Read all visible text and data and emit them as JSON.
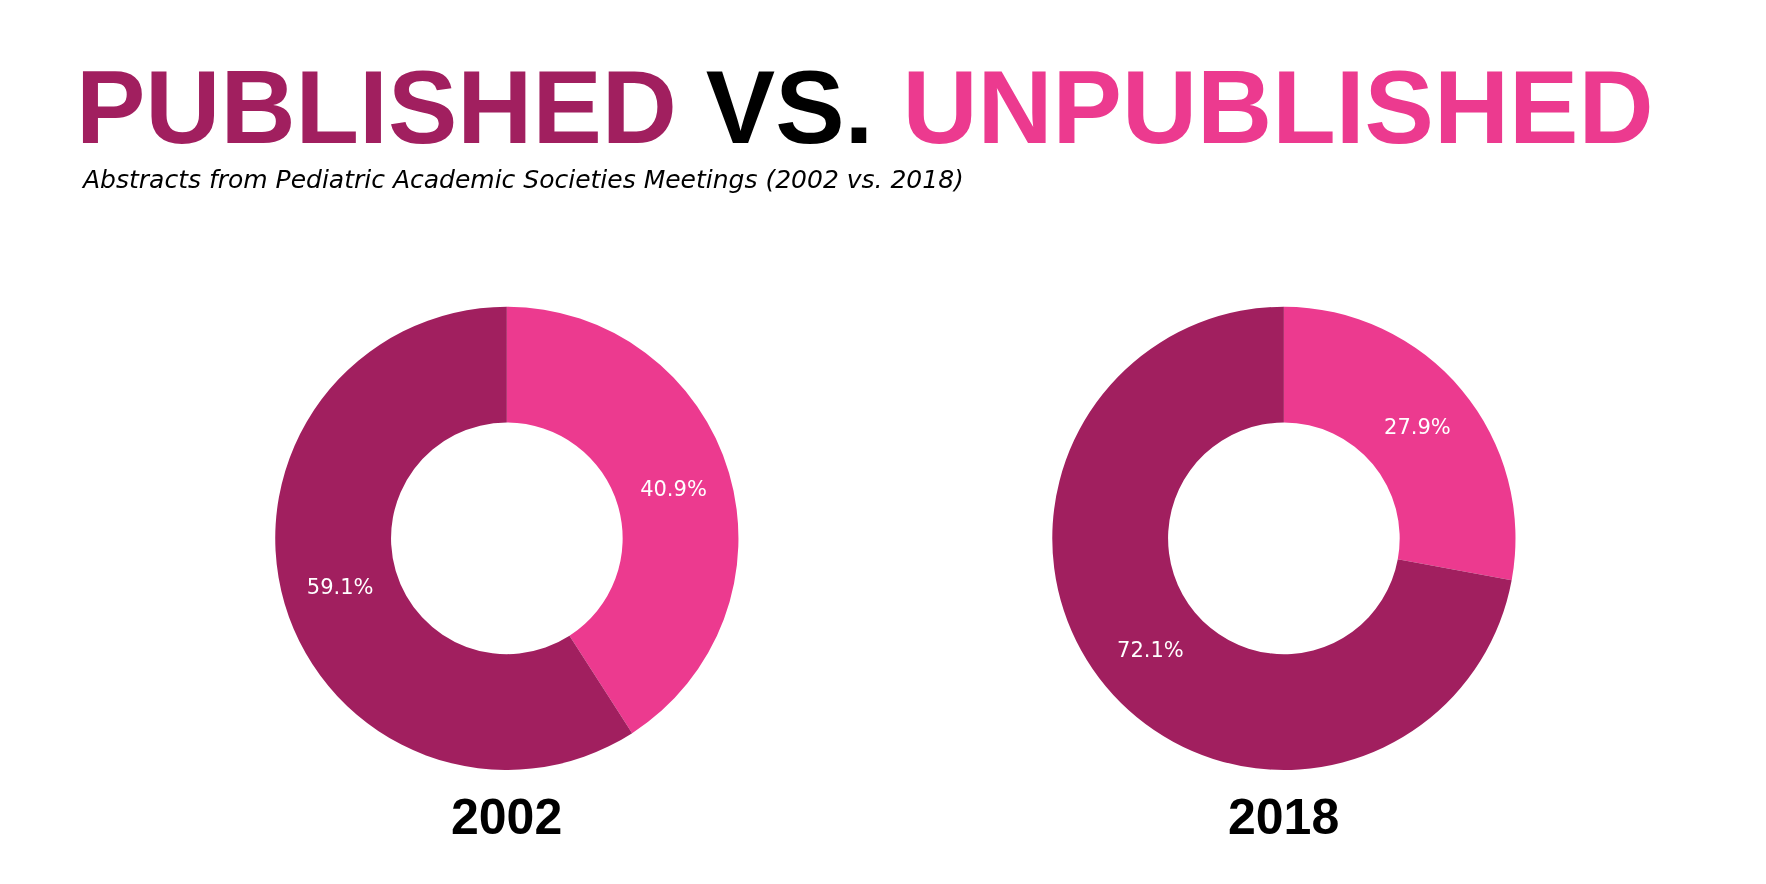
{
  "chart_data": [
    {
      "type": "donut",
      "title": "PUBLISHED VS. UNPUBLISHED",
      "subtitle": "Abstracts from Pediatric Academic Societies Meetings (2002 vs. 2018)",
      "xlabel": "2002",
      "categories": [
        null,
        null
      ],
      "values": [
        40.9,
        59.1
      ],
      "value_labels": [
        "40.9%",
        "59.1%"
      ],
      "colors": [
        "#ec3a8f",
        "#a11f5f"
      ],
      "legend": false
    },
    {
      "type": "donut",
      "xlabel": "2018",
      "categories": [
        null,
        null
      ],
      "values": [
        27.9,
        72.1
      ],
      "value_labels": [
        "27.9%",
        "72.1%"
      ],
      "colors": [
        "#ec3a8f",
        "#a11f5f"
      ],
      "legend": false
    }
  ]
}
